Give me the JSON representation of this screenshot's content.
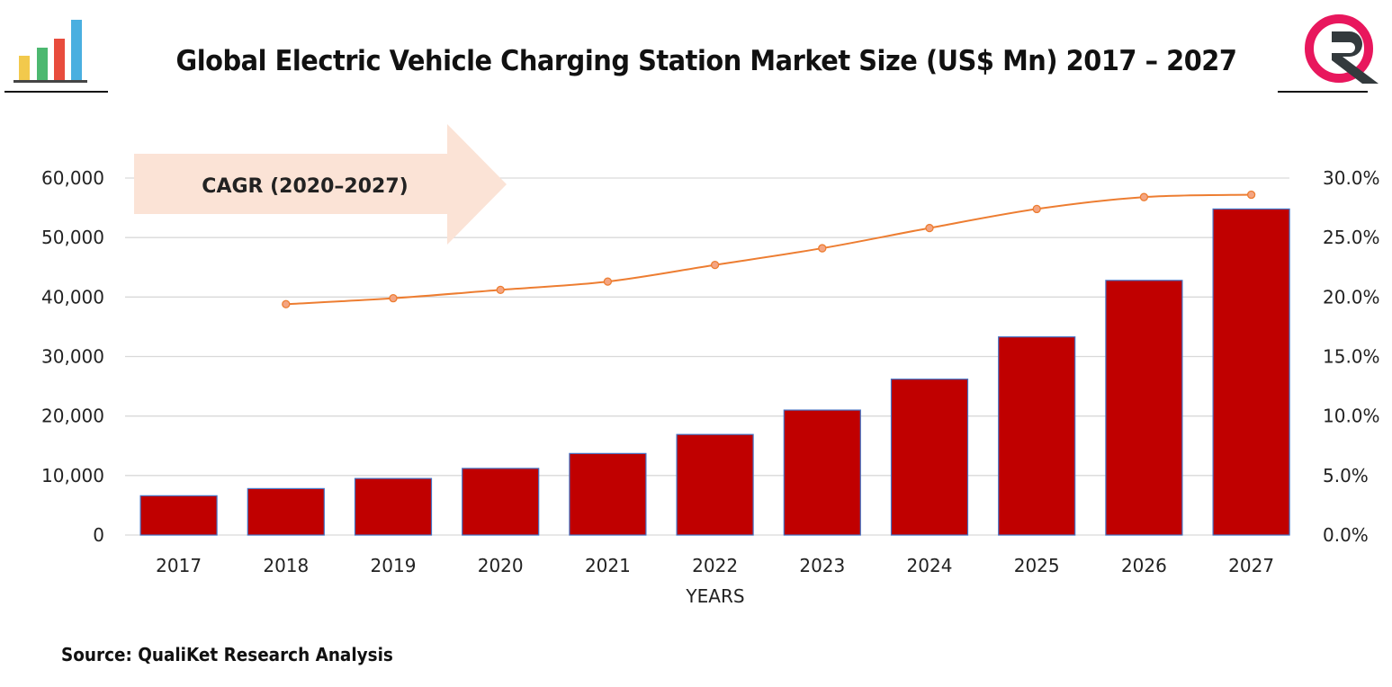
{
  "title": "Global Electric Vehicle Charging Station Market Size (US$ Mn) 2017 – 2027",
  "source": "Source: QualiKet Research Analysis",
  "logo_left": "bar-chart-icon",
  "logo_right": "qualiket-q-r-logo",
  "colors": {
    "bar": "#c00000",
    "bar_border": "#4472c4",
    "line": "#ed7d31",
    "marker": "#f4a582",
    "arrow": "#fbe3d6",
    "grid": "#d9d9d9"
  },
  "chart_data": {
    "type": "bar+line",
    "title": "Global Electric Vehicle Charging Station Market Size (US$ Mn) 2017 – 2027",
    "xlabel": "YEARS",
    "ylabel": "",
    "categories": [
      "2017",
      "2018",
      "2019",
      "2020",
      "2021",
      "2022",
      "2023",
      "2024",
      "2025",
      "2026",
      "2027"
    ],
    "ylim": [
      0,
      60000
    ],
    "yticks": [
      "0",
      "10,000",
      "20,000",
      "30,000",
      "40,000",
      "50,000",
      "60,000"
    ],
    "y2lim": [
      0,
      30
    ],
    "y2ticks": [
      "0.0%",
      "5.0%",
      "10.0%",
      "15.0%",
      "20.0%",
      "25.0%",
      "30.0%"
    ],
    "grid": true,
    "annotation": "CAGR (2020–2027)",
    "series": [
      {
        "type": "bar",
        "axis": "left",
        "values": [
          6600,
          7800,
          9500,
          11200,
          13700,
          16900,
          21000,
          26200,
          33300,
          42800,
          54800
        ]
      },
      {
        "type": "line",
        "axis": "right",
        "values": [
          null,
          19.4,
          19.9,
          20.6,
          21.3,
          22.7,
          24.1,
          25.8,
          27.4,
          28.4,
          28.6
        ]
      }
    ]
  }
}
